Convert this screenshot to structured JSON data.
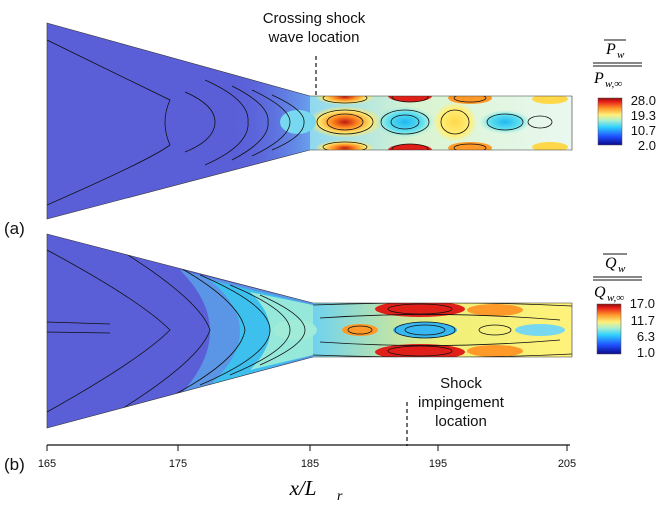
{
  "panel_a": {
    "tag": "(a)",
    "annotation_line1": "Crossing shock",
    "annotation_line2": "wave location",
    "colorbar_label": {
      "numerator_symbol": "P",
      "numerator_sub": "w",
      "denominator_symbol": "P",
      "denominator_sub": "w,∞"
    },
    "colorbar_ticks": [
      "28.0",
      "19.3",
      "10.7",
      "2.0"
    ]
  },
  "panel_b": {
    "tag": "(b)",
    "annotation_line1": "Shock",
    "annotation_line2": "impingement",
    "annotation_line3": "location",
    "colorbar_label": {
      "numerator_symbol": "Q",
      "numerator_sub": "w",
      "denominator_symbol": "Q",
      "denominator_sub": "w,∞"
    },
    "colorbar_ticks": [
      "17.0",
      "11.7",
      "6.3",
      "1.0"
    ]
  },
  "x_axis": {
    "ticks": [
      "165",
      "175",
      "185",
      "195",
      "205"
    ],
    "label_symbol": "x/L",
    "label_sub": "r"
  },
  "colors": {
    "background": "#5a5fd8",
    "colormap": [
      "#0a0a8a",
      "#1f4fff",
      "#2fd0ff",
      "#a8f0d0",
      "#fff07a",
      "#ff9a2a",
      "#e8201a",
      "#8a0a0a"
    ]
  }
}
